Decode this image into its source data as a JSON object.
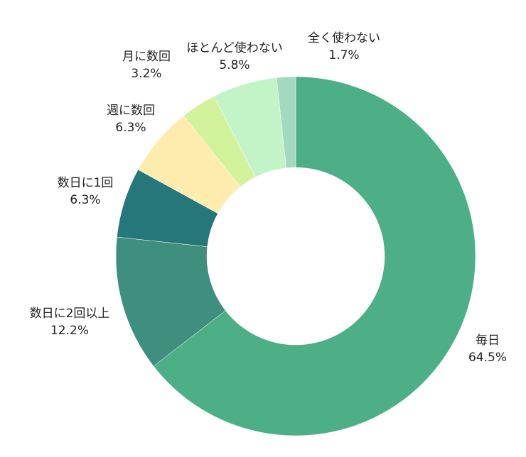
{
  "chart_data": {
    "type": "pie",
    "donut": true,
    "title": "",
    "start": "top",
    "direction": "clockwise",
    "slices": [
      {
        "label": "毎日",
        "value": 64.5,
        "value_label": "64.5%",
        "color": "#4caf87"
      },
      {
        "label": "数日に2回以上",
        "value": 12.2,
        "value_label": "12.2%",
        "color": "#3e8f7e"
      },
      {
        "label": "数日に1回",
        "value": 6.3,
        "value_label": "6.3%",
        "color": "#26777a"
      },
      {
        "label": "週に数回",
        "value": 6.3,
        "value_label": "6.3%",
        "color": "#feecaf"
      },
      {
        "label": "月に数回",
        "value": 3.2,
        "value_label": "3.2%",
        "color": "#d2f29c"
      },
      {
        "label": "ほとんど使わない",
        "value": 5.8,
        "value_label": "5.8%",
        "color": "#c3f4c8"
      },
      {
        "label": "全く使わない",
        "value": 1.7,
        "value_label": "1.7%",
        "color": "#a3d8c1"
      }
    ]
  }
}
